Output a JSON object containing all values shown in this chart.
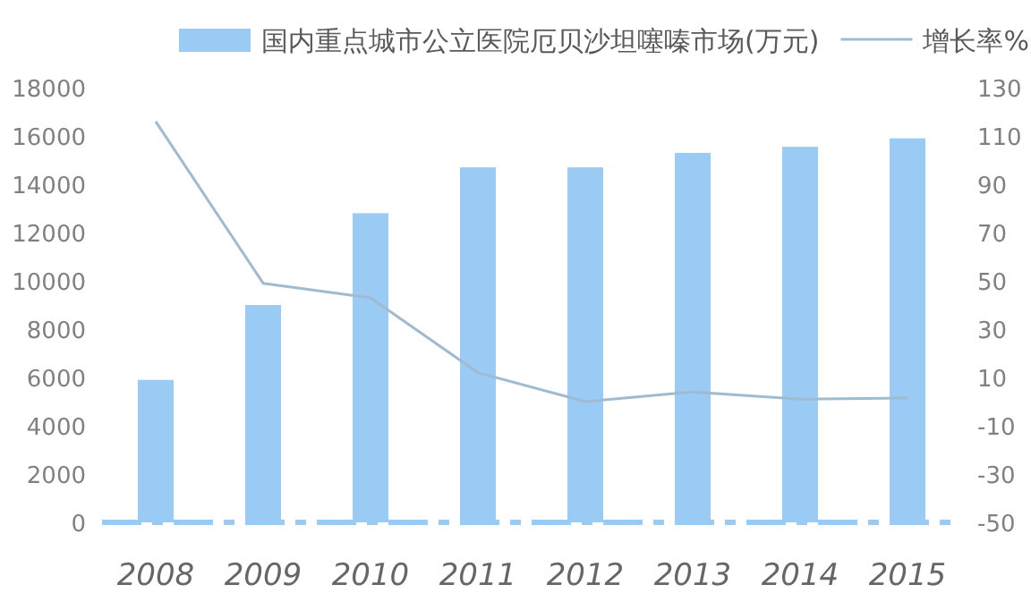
{
  "chart_data": {
    "type": "bar",
    "categories": [
      "2008",
      "2009",
      "2010",
      "2011",
      "2012",
      "2013",
      "2014",
      "2015"
    ],
    "series": [
      {
        "name": "国内重点城市公立医院厄贝沙坦噻嗪市场(万元)",
        "color": "#99cbf5",
        "values": [
          5900,
          9000,
          12800,
          14700,
          14700,
          15300,
          15550,
          15900
        ]
      },
      {
        "name": "增长率%",
        "type": "line",
        "axis": "y2",
        "color": "#9fbbd0",
        "values": [
          116,
          49,
          43,
          12,
          0,
          4,
          1,
          1.5
        ]
      }
    ],
    "ylim": [
      0,
      18000
    ],
    "yticks": [
      0,
      2000,
      4000,
      6000,
      8000,
      10000,
      12000,
      14000,
      16000,
      18000
    ],
    "y2lim": [
      -50,
      130
    ],
    "y2ticks": [
      -50,
      -30,
      -10,
      10,
      30,
      50,
      70,
      90,
      110,
      130
    ],
    "legend": "top",
    "grid": false
  }
}
